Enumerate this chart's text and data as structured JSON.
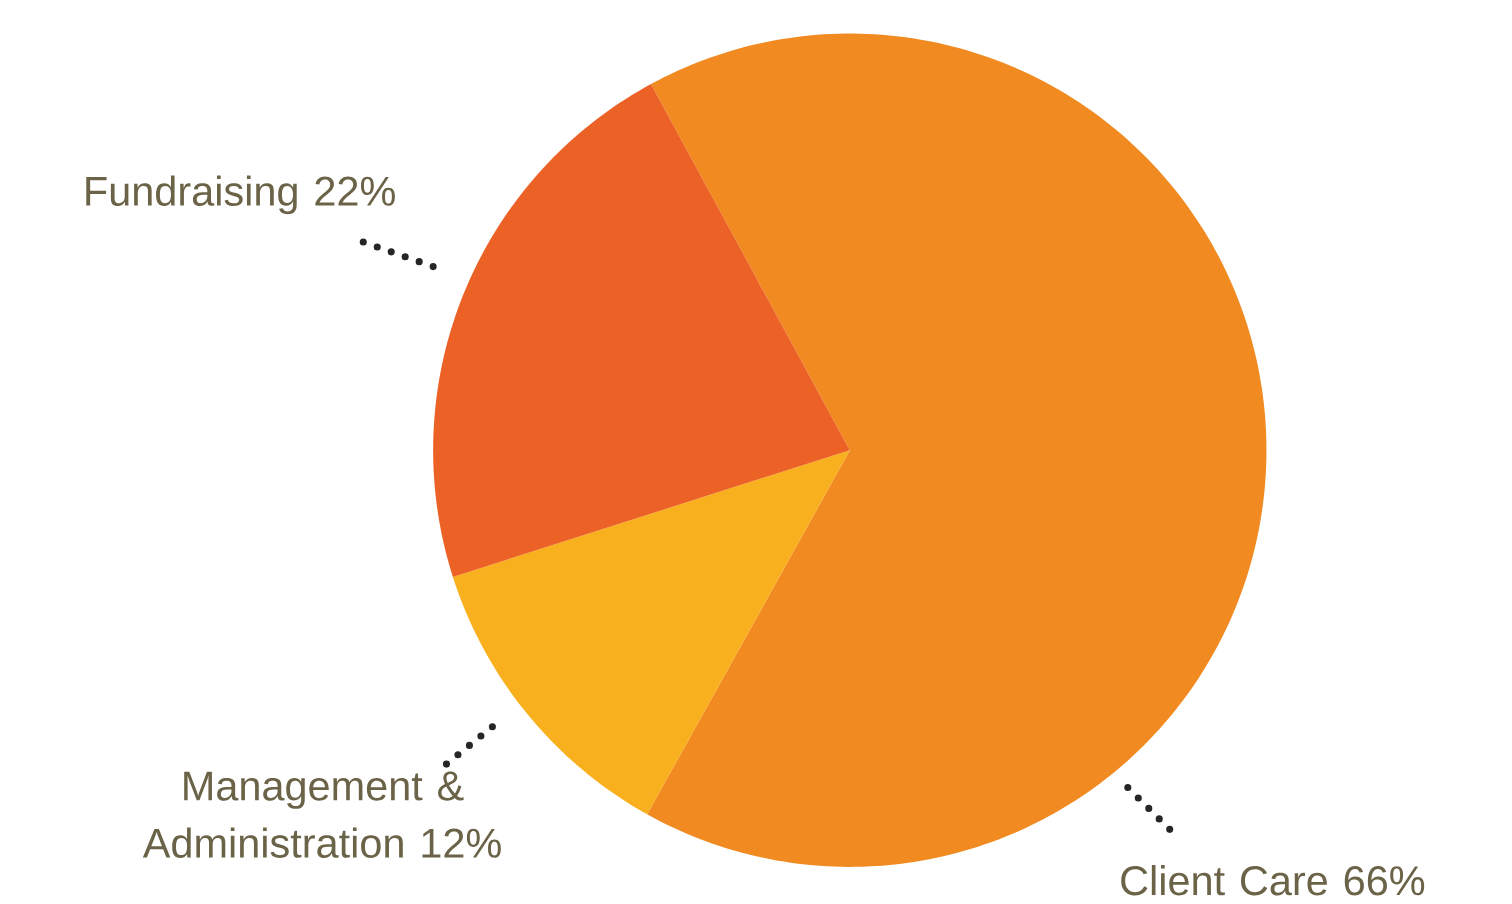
{
  "chart_data": {
    "type": "pie",
    "categories": [
      "Client Care",
      "Management & Administration",
      "Fundraising"
    ],
    "values": [
      66,
      12,
      22
    ],
    "value_labels": [
      "66%",
      "12%",
      "22%"
    ],
    "colors": [
      "#f18a21",
      "#f8b01e",
      "#ec6125"
    ]
  }
}
